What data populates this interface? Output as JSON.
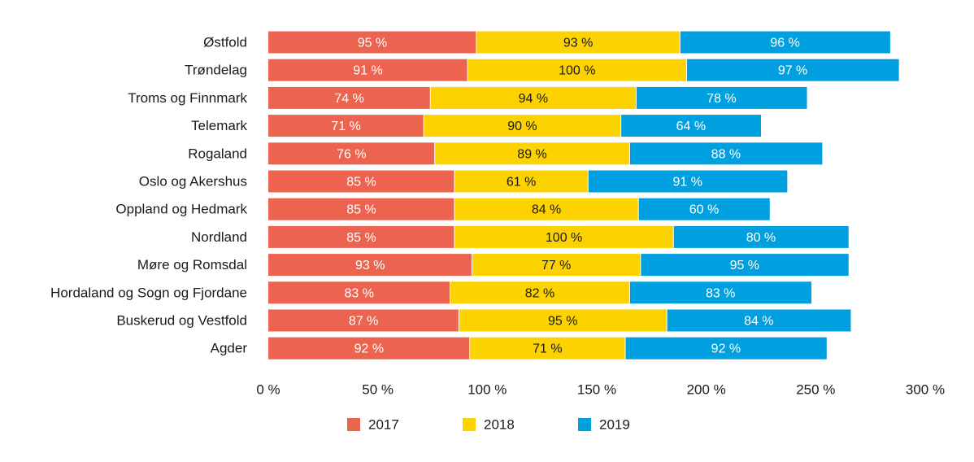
{
  "chart_data": {
    "type": "bar",
    "orientation": "horizontal",
    "stacked": true,
    "title": "",
    "xlabel": "",
    "ylabel": "",
    "xlim": [
      0,
      300
    ],
    "x_ticks": [
      0,
      50,
      100,
      150,
      200,
      250,
      300
    ],
    "x_tick_labels": [
      "0 %",
      "50 %",
      "100 %",
      "150 %",
      "200 %",
      "250 %",
      "300 %"
    ],
    "grid": false,
    "legend_position": "bottom",
    "categories": [
      "Østfold",
      "Trøndelag",
      "Troms og Finnmark",
      "Telemark",
      "Rogaland",
      "Oslo og Akershus",
      "Oppland og Hedmark",
      "Nordland",
      "Møre og Romsdal",
      "Hordaland og Sogn og Fjordane",
      "Buskerud og Vestfold",
      "Agder"
    ],
    "series": [
      {
        "name": "2017",
        "color": "#ec6450",
        "label_color": "#ffffff",
        "values": [
          95,
          91,
          74,
          71,
          76,
          85,
          85,
          85,
          93,
          83,
          87,
          92
        ],
        "labels": [
          "95 %",
          "91 %",
          "74 %",
          "71 %",
          "76 %",
          "85 %",
          "85 %",
          "85 %",
          "93 %",
          "83 %",
          "87 %",
          "92 %"
        ]
      },
      {
        "name": "2018",
        "color": "#fcd200",
        "label_color": "#1a1a1a",
        "values": [
          93,
          100,
          94,
          90,
          89,
          61,
          84,
          100,
          77,
          82,
          95,
          71
        ],
        "labels": [
          "93 %",
          "100 %",
          "94 %",
          "90 %",
          "89 %",
          "61 %",
          "84 %",
          "100 %",
          "77 %",
          "82 %",
          "95 %",
          "71 %"
        ]
      },
      {
        "name": "2019",
        "color": "#00a0e0",
        "label_color": "#ffffff",
        "values": [
          96,
          97,
          78,
          64,
          88,
          91,
          60,
          80,
          95,
          83,
          84,
          92
        ],
        "labels": [
          "96 %",
          "97 %",
          "78 %",
          "64 %",
          "88 %",
          "91 %",
          "60 %",
          "80 %",
          "95 %",
          "83 %",
          "84 %",
          "92 %"
        ]
      }
    ]
  }
}
